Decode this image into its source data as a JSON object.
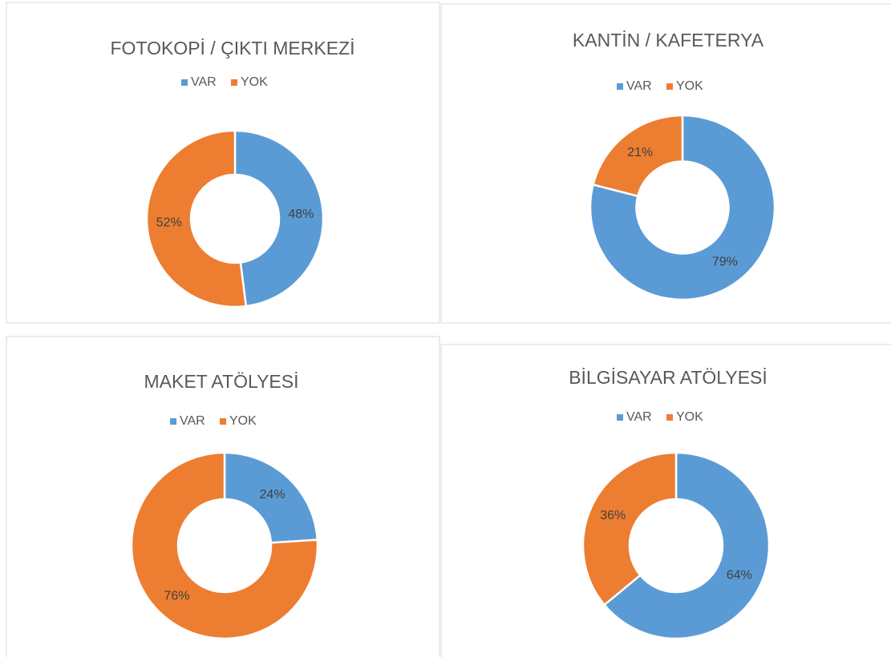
{
  "chart_data": [
    {
      "type": "doughnut",
      "title": "FOTOKOPİ / ÇIKTI MERKEZİ",
      "categories": [
        "VAR",
        "YOK"
      ],
      "values": [
        48,
        52
      ],
      "value_labels": [
        "48%",
        "52%"
      ],
      "colors": [
        "#5b9bd5",
        "#ed7d31"
      ],
      "legend": "top"
    },
    {
      "type": "doughnut",
      "title": "KANTİN / KAFETERYA",
      "categories": [
        "VAR",
        "YOK"
      ],
      "values": [
        79,
        21
      ],
      "value_labels": [
        "79%",
        "21%"
      ],
      "colors": [
        "#5b9bd5",
        "#ed7d31"
      ],
      "legend": "top"
    },
    {
      "type": "doughnut",
      "title": "MAKET ATÖLYESİ",
      "categories": [
        "VAR",
        "YOK"
      ],
      "values": [
        24,
        76
      ],
      "value_labels": [
        "24%",
        "76%"
      ],
      "colors": [
        "#5b9bd5",
        "#ed7d31"
      ],
      "legend": "top"
    },
    {
      "type": "doughnut",
      "title": "BİLGİSAYAR ATÖLYESİ",
      "categories": [
        "VAR",
        "YOK"
      ],
      "values": [
        64,
        36
      ],
      "value_labels": [
        "64%",
        "36%"
      ],
      "colors": [
        "#5b9bd5",
        "#ed7d31"
      ],
      "legend": "top"
    }
  ]
}
